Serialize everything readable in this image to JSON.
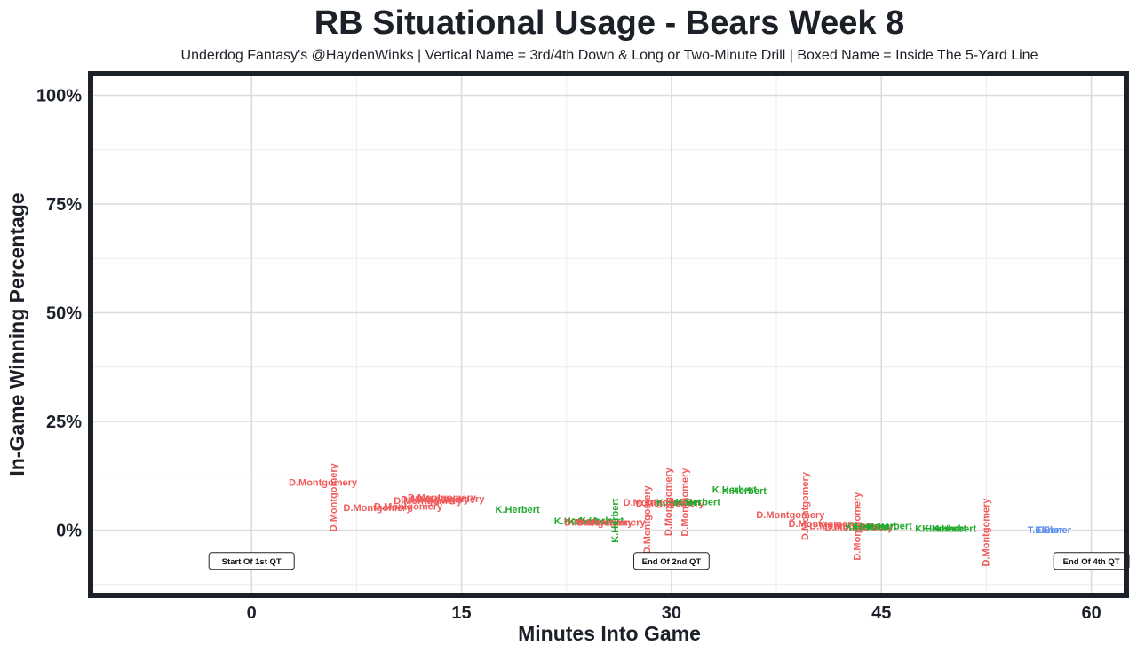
{
  "chart_data": {
    "type": "scatter",
    "title": "RB Situational Usage - Bears Week 8",
    "subtitle": "Underdog Fantasy's @HaydenWinks | Vertical Name = 3rd/4th Down & Long or Two-Minute Drill | Boxed Name = Inside The 5-Yard Line",
    "xlabel": "Minutes Into Game",
    "ylabel": "In-Game Winning Percentage",
    "xlim": [
      -11.5,
      62.5
    ],
    "ylim": [
      -15,
      105
    ],
    "x_ticks": [
      0,
      15,
      30,
      45,
      60
    ],
    "x_tick_labels": [
      "0",
      "15",
      "30",
      "45",
      "60"
    ],
    "y_ticks": [
      0,
      25,
      50,
      75,
      100
    ],
    "y_tick_labels": [
      "0%",
      "25%",
      "50%",
      "75%",
      "100%"
    ],
    "grid": true,
    "players": {
      "D.Montgomery": "#f05a5a",
      "K.Herbert": "#22aa2e",
      "T.Ebner": "#5b8def"
    },
    "quarter_markers": [
      {
        "x": 0,
        "label": "Start Of 1st QT"
      },
      {
        "x": 30,
        "label": "End Of 2nd QT"
      },
      {
        "x": 60,
        "label": "End Of 4th QT"
      }
    ],
    "points": [
      {
        "x": 5.1,
        "y": 10.8,
        "name": "D.Montgomery",
        "vertical": false
      },
      {
        "x": 5.9,
        "y": 7.5,
        "name": "D.Montgomery",
        "vertical": true
      },
      {
        "x": 9.0,
        "y": 5.0,
        "name": "D.Montgomery",
        "vertical": false
      },
      {
        "x": 11.2,
        "y": 5.3,
        "name": "D.Montgomery",
        "vertical": false
      },
      {
        "x": 12.6,
        "y": 6.6,
        "name": "D.Montgomery",
        "vertical": false
      },
      {
        "x": 13.1,
        "y": 6.9,
        "name": "D.Montgomery",
        "vertical": false
      },
      {
        "x": 13.6,
        "y": 7.3,
        "name": "D.Montgomery",
        "vertical": false
      },
      {
        "x": 14.2,
        "y": 7.0,
        "name": "D.Montgomery",
        "vertical": false
      },
      {
        "x": 19.0,
        "y": 4.6,
        "name": "K.Herbert",
        "vertical": false
      },
      {
        "x": 23.2,
        "y": 1.9,
        "name": "K.Herbert",
        "vertical": false
      },
      {
        "x": 24.2,
        "y": 1.8,
        "name": "K.Herbert",
        "vertical": false
      },
      {
        "x": 25.0,
        "y": 2.0,
        "name": "K.Herbert",
        "vertical": false
      },
      {
        "x": 24.8,
        "y": 1.6,
        "name": "D.Montgomery",
        "vertical": false
      },
      {
        "x": 25.7,
        "y": 1.6,
        "name": "D.Montgomery",
        "vertical": false
      },
      {
        "x": 26.0,
        "y": 2.2,
        "name": "K.Herbert",
        "vertical": true
      },
      {
        "x": 28.3,
        "y": 2.4,
        "name": "D.Montgomery",
        "vertical": true
      },
      {
        "x": 29.0,
        "y": 6.2,
        "name": "D.Montgomery",
        "vertical": false
      },
      {
        "x": 29.9,
        "y": 6.0,
        "name": "D.Montgomery",
        "vertical": false
      },
      {
        "x": 30.5,
        "y": 6.2,
        "name": "K.Herbert",
        "vertical": false
      },
      {
        "x": 29.8,
        "y": 6.5,
        "name": "D.Montgomery",
        "vertical": true
      },
      {
        "x": 31.0,
        "y": 6.4,
        "name": "D.Montgomery",
        "vertical": true
      },
      {
        "x": 31.9,
        "y": 6.3,
        "name": "K.Herbert",
        "vertical": false
      },
      {
        "x": 34.5,
        "y": 9.2,
        "name": "K.Herbert",
        "vertical": false
      },
      {
        "x": 35.2,
        "y": 8.9,
        "name": "K.Herbert",
        "vertical": false
      },
      {
        "x": 38.5,
        "y": 3.4,
        "name": "D.Montgomery",
        "vertical": false
      },
      {
        "x": 39.6,
        "y": 5.5,
        "name": "D.Montgomery",
        "vertical": true
      },
      {
        "x": 40.8,
        "y": 1.3,
        "name": "D.Montgomery",
        "vertical": false
      },
      {
        "x": 42.3,
        "y": 0.8,
        "name": "D.Montgomery",
        "vertical": false
      },
      {
        "x": 43.4,
        "y": 0.5,
        "name": "D.Montgomery",
        "vertical": false
      },
      {
        "x": 43.3,
        "y": 0.9,
        "name": "D.Montgomery",
        "vertical": true
      },
      {
        "x": 44.0,
        "y": 0.6,
        "name": "K.Herbert",
        "vertical": false
      },
      {
        "x": 44.5,
        "y": 0.7,
        "name": "K.Herbert",
        "vertical": false
      },
      {
        "x": 45.6,
        "y": 0.8,
        "name": "K.Herbert",
        "vertical": false
      },
      {
        "x": 49.0,
        "y": 0.2,
        "name": "K.Herbert",
        "vertical": false
      },
      {
        "x": 49.5,
        "y": 0.2,
        "name": "K.Herbert",
        "vertical": false
      },
      {
        "x": 50.2,
        "y": 0.2,
        "name": "K.Herbert",
        "vertical": false
      },
      {
        "x": 52.5,
        "y": -0.5,
        "name": "D.Montgomery",
        "vertical": true
      },
      {
        "x": 56.7,
        "y": -0.1,
        "name": "T.Ebner",
        "vertical": false
      },
      {
        "x": 57.3,
        "y": -0.1,
        "name": "T.Ebner",
        "vertical": false
      }
    ]
  }
}
